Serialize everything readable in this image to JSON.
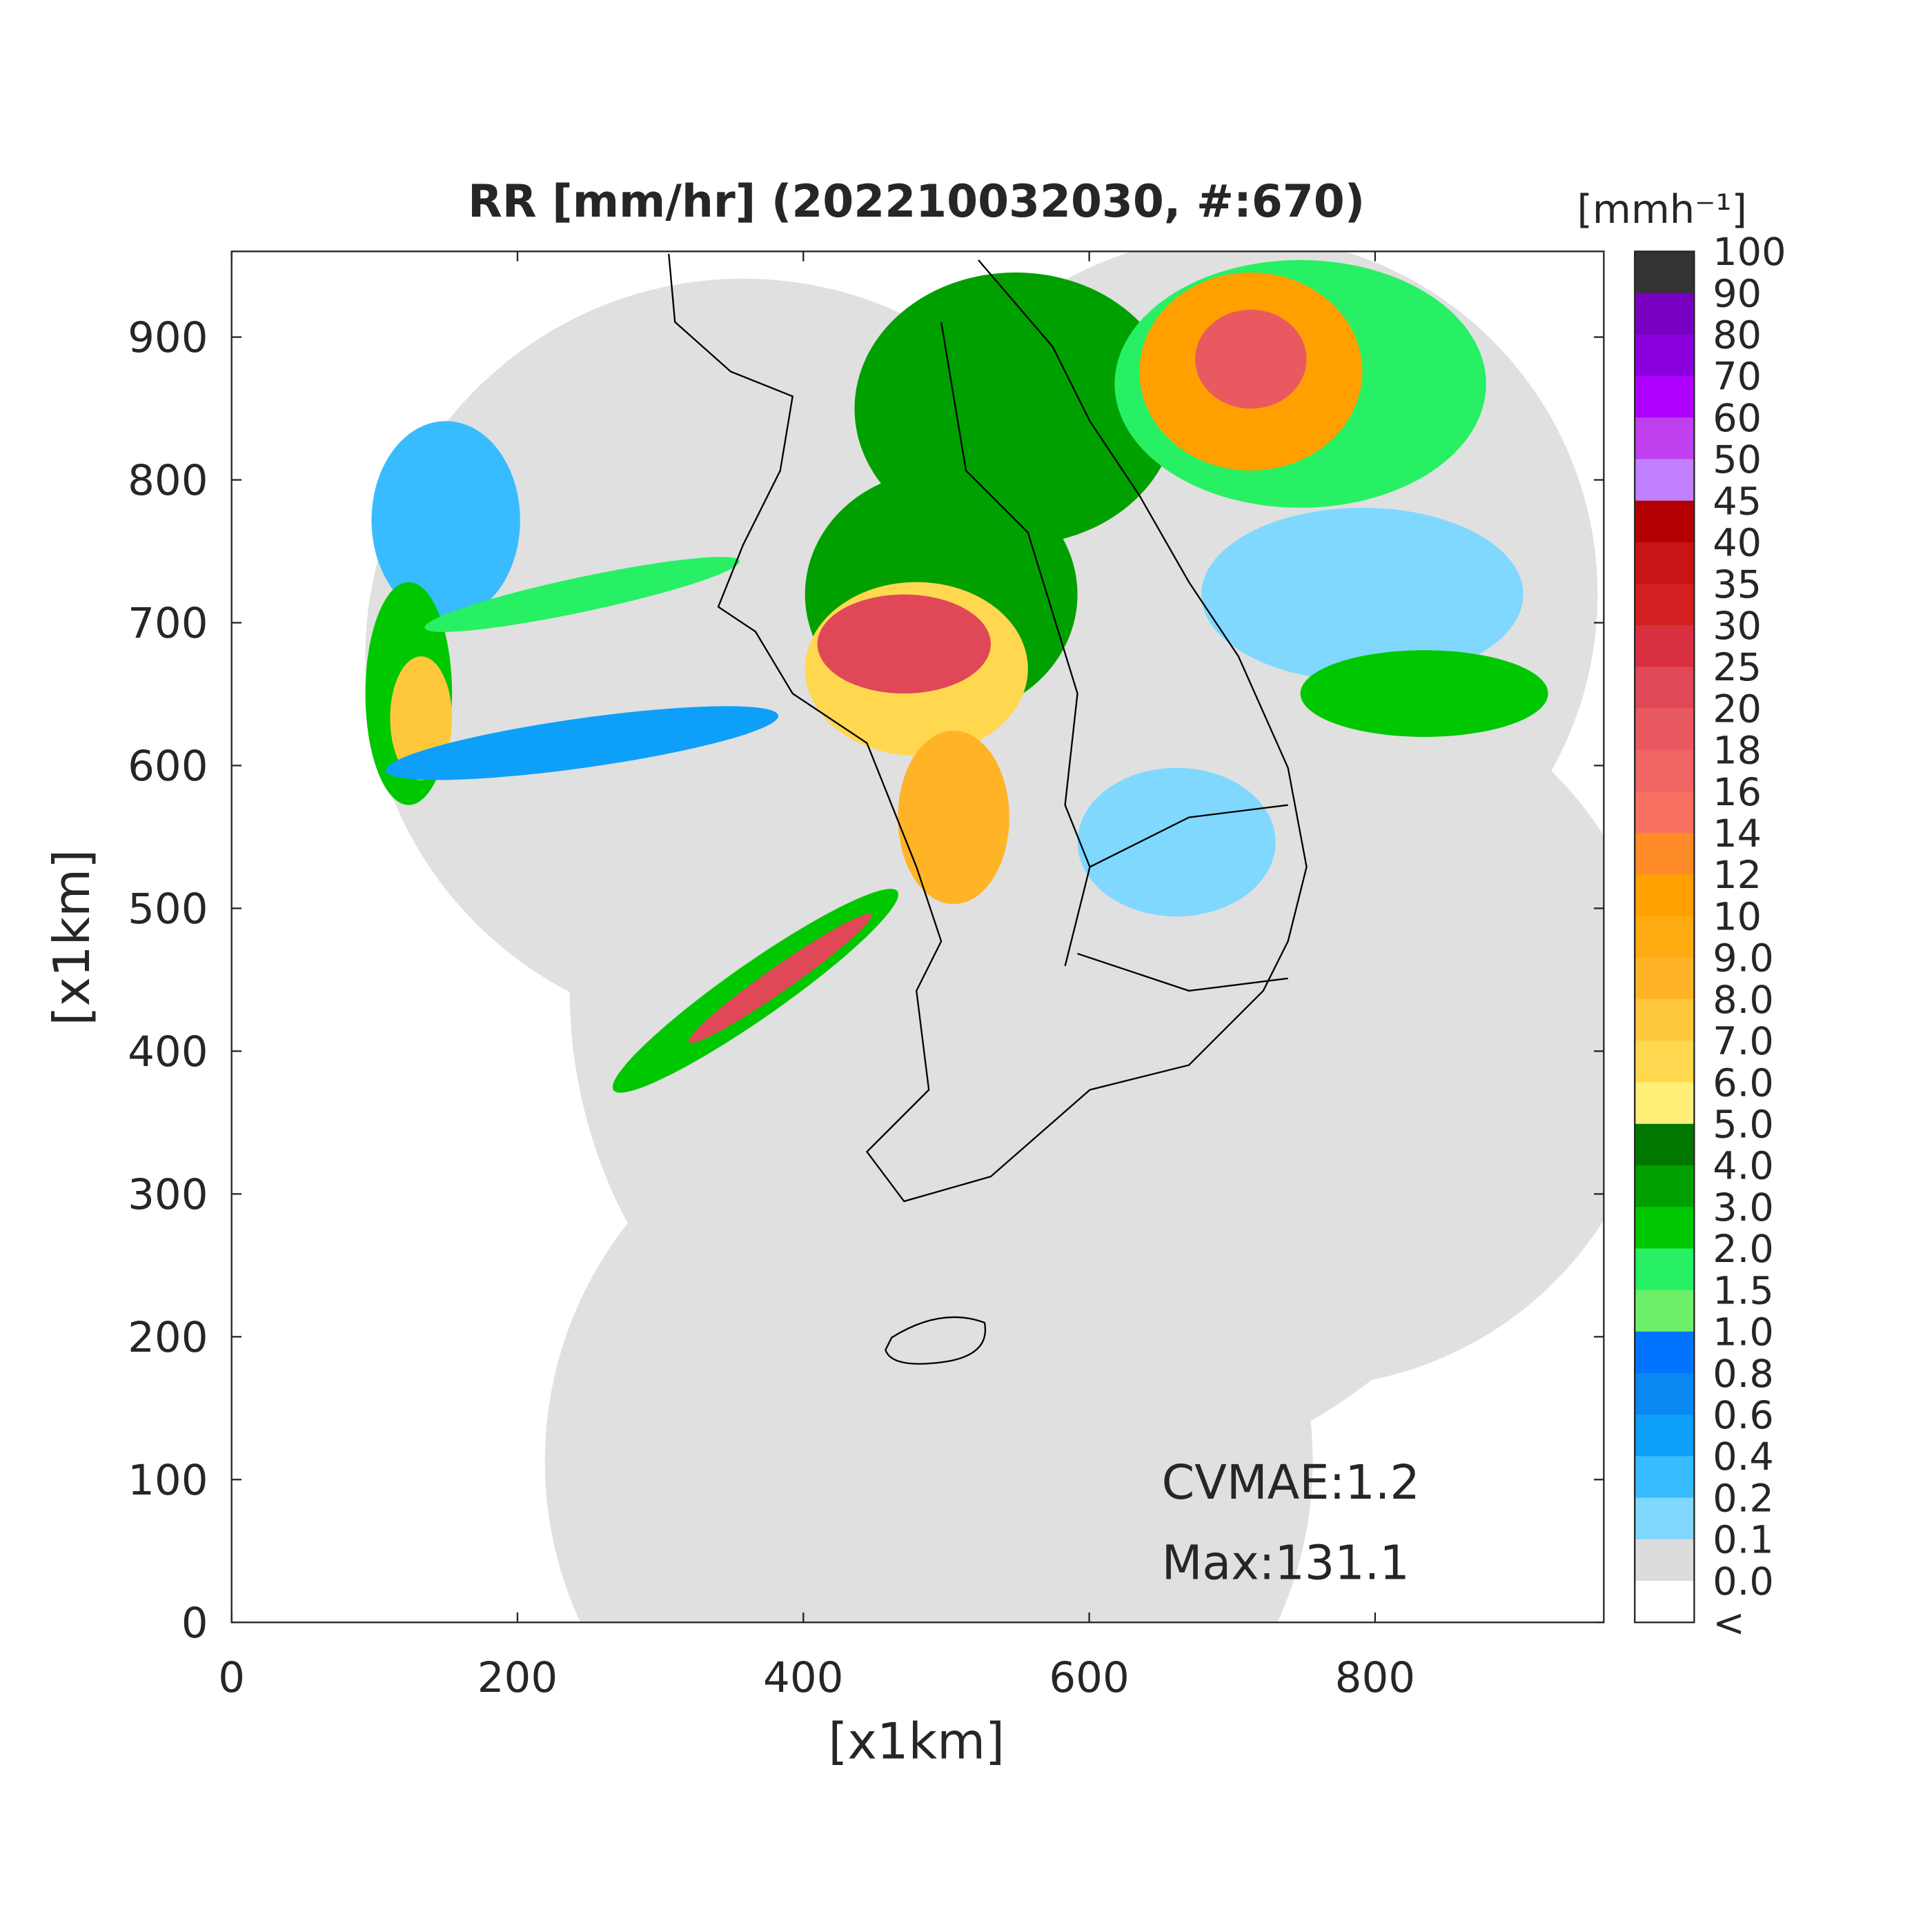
{
  "title": "RR [mm/hr] (202210032030, #:670)",
  "xlabel": "[x1km]",
  "ylabel": "[x1km]",
  "xlim": [
    0,
    960
  ],
  "ylim": [
    0,
    960
  ],
  "xticks": [
    0,
    200,
    400,
    600,
    800
  ],
  "yticks": [
    0,
    100,
    200,
    300,
    400,
    500,
    600,
    700,
    800,
    900
  ],
  "annotations": [
    "CVMAE:1.2",
    "Max:131.1"
  ],
  "colorbar": {
    "unit": "[mmh⁻¹]",
    "labels": [
      "100",
      "90",
      "80",
      "70",
      "60",
      "50",
      "45",
      "40",
      "35",
      "30",
      "25",
      "20",
      "18",
      "16",
      "14",
      "12",
      "10",
      "9.0",
      "8.0",
      "7.0",
      "6.0",
      "5.0",
      "4.0",
      "3.0",
      "2.0",
      "1.5",
      "1.0",
      "0.8",
      "0.6",
      "0.4",
      "0.2",
      "0.1",
      "0.0",
      "<"
    ],
    "colors": [
      "#333333",
      "#7800c0",
      "#8c00e0",
      "#b000ff",
      "#c040f0",
      "#c080ff",
      "#b40000",
      "#c81414",
      "#d22020",
      "#d83040",
      "#e04858",
      "#e85a60",
      "#f06464",
      "#f87060",
      "#ff8c28",
      "#ffa000",
      "#ffaa10",
      "#ffb428",
      "#ffc83c",
      "#ffd850",
      "#ffee78",
      "#007800",
      "#00a000",
      "#00c800",
      "#28f064",
      "#6cf068",
      "#0073ff",
      "#0a87f0",
      "#0ea0f8",
      "#38bcff",
      "#80d8ff",
      "#dcdcdc",
      "#ffffff"
    ]
  }
}
